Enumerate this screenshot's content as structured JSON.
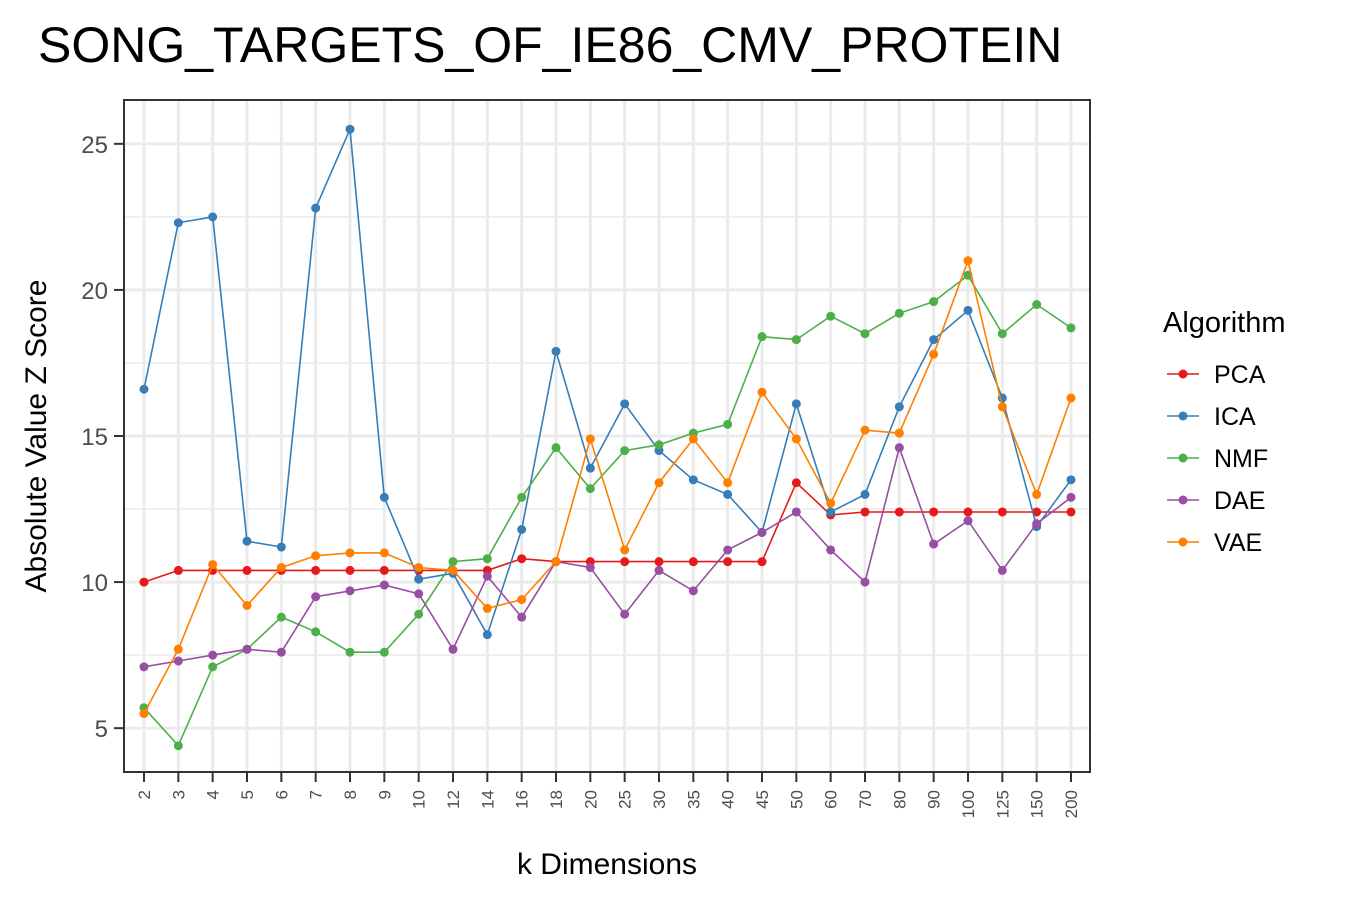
{
  "chart_data": {
    "type": "line",
    "title": "SONG_TARGETS_OF_IE86_CMV_PROTEIN",
    "xlabel": "k Dimensions",
    "ylabel": "Absolute Value Z Score",
    "categories": [
      "2",
      "3",
      "4",
      "5",
      "6",
      "7",
      "8",
      "9",
      "10",
      "12",
      "14",
      "16",
      "18",
      "20",
      "25",
      "30",
      "35",
      "40",
      "45",
      "50",
      "60",
      "70",
      "80",
      "90",
      "100",
      "125",
      "150",
      "200"
    ],
    "ylim": [
      3.5,
      26.5
    ],
    "yticks": [
      "5",
      "10",
      "15",
      "20",
      "25"
    ],
    "grid": true,
    "legend_position": "right",
    "legend_title": "Algorithm",
    "series": [
      {
        "name": "PCA",
        "color": "#e41a1c",
        "values": [
          10.0,
          10.4,
          10.4,
          10.4,
          10.4,
          10.4,
          10.4,
          10.4,
          10.4,
          10.4,
          10.4,
          10.8,
          10.7,
          10.7,
          10.7,
          10.7,
          10.7,
          10.7,
          10.7,
          13.4,
          12.3,
          12.4,
          12.4,
          12.4,
          12.4,
          12.4,
          12.4,
          12.4
        ]
      },
      {
        "name": "ICA",
        "color": "#377eb8",
        "values": [
          16.6,
          22.3,
          22.5,
          11.4,
          11.2,
          22.8,
          25.5,
          12.9,
          10.1,
          10.3,
          8.2,
          11.8,
          17.9,
          13.9,
          16.1,
          14.5,
          13.5,
          13.0,
          11.7,
          16.1,
          12.4,
          13.0,
          16.0,
          18.3,
          19.3,
          16.3,
          11.9,
          13.5
        ]
      },
      {
        "name": "NMF",
        "color": "#4daf4a",
        "values": [
          5.7,
          4.4,
          7.1,
          7.7,
          8.8,
          8.3,
          7.6,
          7.6,
          8.9,
          10.7,
          10.8,
          12.9,
          14.6,
          13.2,
          14.5,
          14.7,
          15.1,
          15.4,
          18.4,
          18.3,
          19.1,
          18.5,
          19.2,
          19.6,
          20.5,
          18.5,
          19.5,
          18.7
        ]
      },
      {
        "name": "DAE",
        "color": "#984ea3",
        "values": [
          7.1,
          7.3,
          7.5,
          7.7,
          7.6,
          9.5,
          9.7,
          9.9,
          9.6,
          7.7,
          10.2,
          8.8,
          10.7,
          10.5,
          8.9,
          10.4,
          9.7,
          11.1,
          11.7,
          12.4,
          11.1,
          10.0,
          14.6,
          11.3,
          12.1,
          10.4,
          12.0,
          12.9
        ]
      },
      {
        "name": "VAE",
        "color": "#ff7f00",
        "values": [
          5.5,
          7.7,
          10.6,
          9.2,
          10.5,
          10.9,
          11.0,
          11.0,
          10.5,
          10.4,
          9.1,
          9.4,
          10.7,
          14.9,
          11.1,
          13.4,
          14.9,
          13.4,
          16.5,
          14.9,
          12.7,
          15.2,
          15.1,
          17.8,
          21.0,
          16.0,
          13.0,
          16.3
        ]
      }
    ]
  }
}
